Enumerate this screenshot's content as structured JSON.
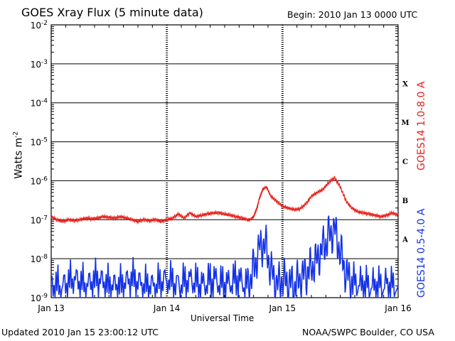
{
  "chart_data": {
    "type": "line",
    "title": "GOES Xray Flux (5 minute data)",
    "begin": "Begin:  2010 Jan 13 0000 UTC",
    "xlabel": "Universal Time",
    "ylabel": "Watts m",
    "ylabel_exp": "-2",
    "yscale": "log",
    "ylim": [
      1e-09,
      0.01
    ],
    "y_ticks": [
      {
        "base": "10",
        "exp": "-2"
      },
      {
        "base": "10",
        "exp": "-3"
      },
      {
        "base": "10",
        "exp": "-4"
      },
      {
        "base": "10",
        "exp": "-5"
      },
      {
        "base": "10",
        "exp": "-6"
      },
      {
        "base": "10",
        "exp": "-7"
      },
      {
        "base": "10",
        "exp": "-8"
      },
      {
        "base": "10",
        "exp": "-9"
      }
    ],
    "x_ticks": [
      "Jan 13",
      "Jan 14",
      "Jan 15",
      "Jan 16"
    ],
    "xlim_days": [
      0,
      3
    ],
    "flare_classes": [
      "X",
      "M",
      "C",
      "B",
      "A"
    ],
    "series": [
      {
        "name": "GOES14 1.0-8.0 A",
        "color": "#e8201a",
        "x": [
          0,
          0.05,
          0.1,
          0.15,
          0.2,
          0.25,
          0.3,
          0.35,
          0.4,
          0.45,
          0.5,
          0.55,
          0.6,
          0.65,
          0.7,
          0.75,
          0.8,
          0.85,
          0.9,
          0.95,
          1.0,
          1.05,
          1.1,
          1.15,
          1.2,
          1.25,
          1.3,
          1.35,
          1.4,
          1.45,
          1.5,
          1.55,
          1.6,
          1.65,
          1.7,
          1.72,
          1.75,
          1.78,
          1.8,
          1.83,
          1.86,
          1.9,
          1.95,
          2.0,
          2.05,
          2.1,
          2.15,
          2.2,
          2.25,
          2.3,
          2.35,
          2.4,
          2.45,
          2.5,
          2.55,
          2.6,
          2.65,
          2.7,
          2.75,
          2.8,
          2.85,
          2.9,
          2.95,
          3.0
        ],
        "y": [
          1.2e-07,
          1e-07,
          9e-08,
          1e-07,
          9.5e-08,
          1e-07,
          1.1e-07,
          1.05e-07,
          1.1e-07,
          1.2e-07,
          1.15e-07,
          1.1e-07,
          1.2e-07,
          1.1e-07,
          1e-07,
          9e-08,
          1e-07,
          9.5e-08,
          1e-07,
          9e-08,
          1e-07,
          1.1e-07,
          1.4e-07,
          1.1e-07,
          1.5e-07,
          1.2e-07,
          1.3e-07,
          1.4e-07,
          1.5e-07,
          1.5e-07,
          1.4e-07,
          1.3e-07,
          1.2e-07,
          1.1e-07,
          1e-07,
          1e-07,
          1.2e-07,
          2e-07,
          3.5e-07,
          6e-07,
          7e-07,
          4e-07,
          3e-07,
          2.2e-07,
          2e-07,
          1.8e-07,
          1.9e-07,
          2.5e-07,
          4e-07,
          5e-07,
          6e-07,
          9e-07,
          1.2e-06,
          7e-07,
          3e-07,
          2e-07,
          1.6e-07,
          1.5e-07,
          1.4e-07,
          1.3e-07,
          1.2e-07,
          1.3e-07,
          1.5e-07,
          1.3e-07
        ]
      },
      {
        "name": "GOES14 0.5-4.0 A",
        "color": "#1432e6",
        "x": [
          0,
          0.1,
          0.2,
          0.3,
          0.4,
          0.5,
          0.6,
          0.7,
          0.8,
          0.9,
          1.0,
          1.1,
          1.2,
          1.3,
          1.4,
          1.5,
          1.6,
          1.7,
          1.75,
          1.8,
          1.85,
          1.9,
          1.95,
          2.0,
          2.05,
          2.1,
          2.15,
          2.2,
          2.25,
          2.3,
          2.35,
          2.4,
          2.45,
          2.5,
          2.55,
          2.6,
          2.7,
          2.8,
          2.9,
          3.0
        ],
        "y": [
          2e-09,
          2e-09,
          3e-09,
          2e-09,
          3e-09,
          2e-09,
          2e-09,
          3e-09,
          2e-09,
          2e-09,
          3e-09,
          2e-09,
          3e-09,
          2e-09,
          3e-09,
          2e-09,
          3e-09,
          2e-09,
          5e-09,
          2e-08,
          2.5e-08,
          5e-09,
          2e-09,
          3e-09,
          2.5e-09,
          2e-09,
          3e-09,
          4e-09,
          6e-09,
          1e-08,
          2e-08,
          3.5e-08,
          6e-08,
          1.5e-08,
          4e-09,
          2.5e-09,
          2e-09,
          2e-09,
          2e-09,
          2e-09
        ]
      }
    ]
  },
  "footer": {
    "updated": "Updated 2010 Jan 15 23:00:12 UTC",
    "credit": "NOAA/SWPC Boulder, CO USA"
  }
}
